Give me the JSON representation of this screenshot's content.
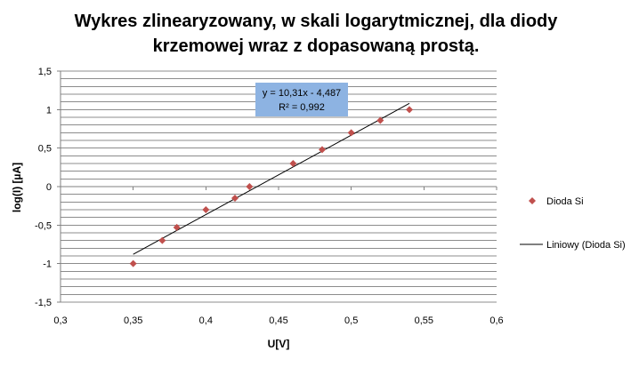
{
  "chart_data": {
    "type": "scatter",
    "title": [
      "Wykres zlinearyzowany, w skali logarytmicznej, dla diody",
      "krzemowej wraz z dopasowaną prostą."
    ],
    "xlabel": "U[V]",
    "ylabel": "log(I) [µA]",
    "xlim": [
      0.3,
      0.6
    ],
    "ylim": [
      -1.5,
      1.5
    ],
    "x_ticks": [
      "0,3",
      "0,35",
      "0,4",
      "0,45",
      "0,5",
      "0,55",
      "0,6"
    ],
    "y_ticks": [
      "1,5",
      "1",
      "0,5",
      "0",
      "-0,5",
      "-1",
      "-1,5"
    ],
    "grid": "horizontal",
    "legend_position": "right",
    "series": [
      {
        "name": "Dioda Si",
        "color": "#c0504d",
        "marker": "diamond",
        "points": [
          {
            "x": 0.35,
            "y": -1.0
          },
          {
            "x": 0.37,
            "y": -0.7
          },
          {
            "x": 0.38,
            "y": -0.53
          },
          {
            "x": 0.4,
            "y": -0.3
          },
          {
            "x": 0.42,
            "y": -0.15
          },
          {
            "x": 0.43,
            "y": 0.0
          },
          {
            "x": 0.46,
            "y": 0.3
          },
          {
            "x": 0.48,
            "y": 0.48
          },
          {
            "x": 0.5,
            "y": 0.7
          },
          {
            "x": 0.52,
            "y": 0.86
          },
          {
            "x": 0.54,
            "y": 1.0
          }
        ]
      }
    ],
    "trendline": {
      "name": "Liniowy (Dioda Si)",
      "color": "#000000",
      "slope": 10.31,
      "intercept": -4.487,
      "x_range": [
        0.35,
        0.54
      ],
      "equation": "y = 10,31x - 4,487",
      "r_squared": "R² = 0,992",
      "label_color": "#8db3e2"
    }
  }
}
